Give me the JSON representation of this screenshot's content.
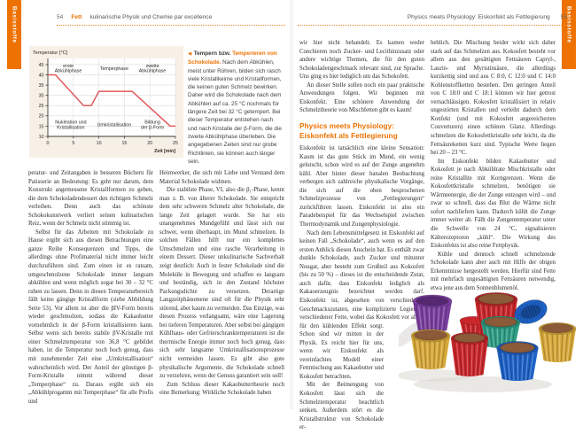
{
  "accent_color": "#ee7203",
  "tabs": {
    "left": "Basisstoffe",
    "right": "Basisstoffe"
  },
  "header_left": {
    "page_number": "54",
    "chapter": "Fett",
    "title": "kulinarische Physik und Chemie par excellence"
  },
  "header_right": {
    "section": "Physics meets Physiology:  Eiskonfekt als Fettlegierung",
    "page_number": "55"
  },
  "chart_data": {
    "type": "line",
    "title": "Temperatur [°C]",
    "xlabel": "Zeit [min]",
    "ylabel": "Temperatur [°C]",
    "xlim": [
      0,
      25
    ],
    "ylim": [
      10,
      48
    ],
    "xticks": [
      0,
      5,
      10,
      15,
      20,
      25
    ],
    "yticks": [
      10,
      15,
      20,
      25,
      30,
      35,
      40,
      45
    ],
    "grid": true,
    "background": "#f7f0e7",
    "line_color": "#e2595b",
    "series": [
      {
        "points": [
          [
            0,
            40
          ],
          [
            1.5,
            40
          ],
          [
            7,
            25
          ],
          [
            8.5,
            25
          ],
          [
            10,
            32
          ],
          [
            16.5,
            32
          ],
          [
            24,
            15
          ],
          [
            25,
            15
          ]
        ]
      }
    ],
    "annotations": [
      {
        "text": "erste\nAbkühlphase",
        "x": 4,
        "y": 43.3
      },
      {
        "text": "Temperphase",
        "x": 13,
        "y": 43.3
      },
      {
        "text": "zweite\nAbkühlphase",
        "x": 20.5,
        "y": 43.3
      },
      {
        "text": "Nukleation und\nKristallisation",
        "x": 4.5,
        "y": 15.8
      },
      {
        "text": "Umkristallisation",
        "x": 13,
        "y": 15.8
      },
      {
        "text": "Bildung\nder β-Form",
        "x": 20.5,
        "y": 15.8
      }
    ]
  },
  "figure_caption": {
    "marker": "◀",
    "lead": "Tempern bzw.",
    "lead_highlight": "Temperieren von Schokolade.",
    "body": "Nach dem Abkühlen, meist unter Rühren, bilden sich rasch viele Kristallkeime und Kristallformen, die keinen guten Schmelz bewirken. Daher wird die Schokolade nach dem Abkühlen auf ca. 25 °C nochmals für längere Zeit bei 32 °C getempert. Bei dieser Temperatur entstehen nach und nach Kristalle der β-Form, die die zweite Abkühlphase überleben. Die angegebenen Zeiten sind nur grobe Richtlinien, sie können auch länger sein."
  },
  "page_left": {
    "col1": {
      "p1": "peratur- und Zeitangaben in besseren Büchern für Patisserie an Bedeutung: Es geht nur darum, dem Konstrukt angemessene Kristallformen zu geben, die dem Schokoladendessert den richtigen Schmelz verleihen. Denn auch das schönste Schokokunstwerk verliert seinen kulinarischen Reiz, wenn der Schmelz nicht stimmig ist.",
      "p2": "Selbst für das Arbeiten mit Schokolade zu Hause ergibt sich aus diesen Betrachtungen eine ganze Reihe Konsequenzen und Tipps, die allerdings ohne Profimaterial nicht immer leicht durchzuführen sind. Zum einen ist es ratsam, umgeschmolzene Schokolade immer langsam abkühlen und wenn möglich sogar bei 30 – 32 °C ruhen zu lassen. Denn in diesen Temperaturbereich fällt keine gängige Kristallform (siehe Abbildung Seite 53). Vor allem ist aber die βIV-Form bereits wieder geschmolzen, sodass die Kakaobutter vornehmlich in der β-Form kristallisieren kann. Selbst wenn sich bereits stabile βV-Kristalle mit einer Schmelztemperatur von 36,8 °C gebildet haben, ist die Temperatur noch hoch genug, dass mit zunehmender Zeit eine „Umkristallisation“ wahrscheinlich wird. Der Anteil der günstigen β-Form-Kristalle nimmt während dieser „Temperphase“ zu. Daraus ergibt sich ein „Abkühlprogamm mit Temperphase“ für alle Profis und"
    },
    "col2": {
      "p1": "Heimwerker, die sich mit Liebe und Verstand dem Material Schokolade widmen.",
      "p2": "Die stabilste Phase, VI, also die β₁-Phase, kennt man z. B. von älterer Schokolade. Sie entspricht dem sehr schweren Schmelz alter Schokolade, die lange Zeit gelagert wurde. Sie hat ein unangenehmes Mundgefühl und lässt sich nur schwer, wenn überhaupt, im Mund schmelzen. In solchen Fällen hilft nur ein komplettes Umschmelzen und eine rasche Verarbeitung in einem Dessert. Dieser unkulinarische Sachverhalt zeigt deutlich: Auch in fester Schokolade sind die Moleküle in Bewegung und schaffen es langsam und beständig, sich in den Zustand höchster Packungsdichte zu versetzen. Derartige Langzeitphänomene sind oft für die Physik sehr störend, aber kaum zu vermeiden. Das Einzige, was diesen Prozess verlangsamt, wäre eine Lagerung bei tieferen Temperaturen. Aber selbst bei gängigen Kühlhaus- oder Gefrierschranktemperaturen ist die thermische Energie immer noch hoch genug, dass sich sehr langsame Umkristallisationsprozesse nicht vermeiden lassen. Es gibt also gute physikalische Argumente, die Schokolade schnell zu verzehren, wenn der Genuss garantiert sein soll!",
      "p3": "Zum Schluss dieser Kakaobuttertheorie noch eine Bemerkung: Wirkliche Schokolade haben"
    }
  },
  "page_right": {
    "col1": {
      "p1": "wir hier nicht behandelt. Es kamen weder Conchieren noch Zucker- und Lecithinzusatz oder andere wichtige Themen, die für den guten Schokoladengeschmack relevant sind, zur Sprache. Uns ging es hier lediglich um das Schokofett.",
      "p2": "An dieser Stelle sollen noch ein paar praktische Anwendungen folgen. Wir beginnen mit Eiskonfekt. Eine schönere Anwendung der Schmelztheorie von Mischfetten gibt es kaum!",
      "heading": "Physics meets Physiology: Eiskonfekt als Fettlegierung",
      "p3": "Eiskonfekt ist tatsächlich eine kleine Sensation: Kaum ist das gute Stück im Mund, ein wenig gelutscht, schon wird es auf der Zunge angenehm kühl. Aber hinter dieser banalen Beobachtung verbergen sich zahlreiche physikalische Vorgänge, die sich auf die oben besprochenen Schmelzprozesse von „Fettlegierungen“ zurückführen lassen. Eiskonfekt ist also ein Paradebeispiel für das Wechselspiel zwischen Thermodynamik und Zungenphysiologie.",
      "p4a": "Nach dem Lebensmittelgesetz ist Eiskonfekt auf keinen Fall „Schokolade“, auch wenn es auf den ersten Anblick diesen Anschein hat. Es enthält zwar dunkle Schokolade, auch Zucker und mitunter Nougat, aber besteht zum Großteil aus Kokosfett (bis zu 50 %) – dieses ist die entscheidende Zutat, auch dafür, dass Eiskonfekt lediglich als Kakaoerzeugnis bezeichnet werden darf. Eiskonfekt ist, abgesehen von verschiedenen Geschmackszutaten, eine komplizierte Legierung verschiedener Fette, wobei das Kokosfett vor allem für den kühlenden Effekt sorgt.",
      "p4b": "Schon sind wir mitten in der Physik. Es reicht hier für uns, wenn wir Eiskonfekt als vereinfachtes Modell einer Fettmischung aus Kakaobutter und Kokosfett betrachten.",
      "p5": "Mit der Beimengung von Kokosfett lässt sich die Schmelztemperatur beachtlich senken. Außerdem stört es die Kristallstruktur von Schokolade er-"
    },
    "col2": {
      "p1": "heblich. Die Mischung beider wirkt sich daher stark auf das Schmelzen aus. Kokosfett besteht vor allem aus den gesättigten Fettsäuren Capryl-, Laurin- und Myristinsäure, die allerdings kurzkettig sind und aus C 8:0, C 12:0 und C 14:0 Kohlenstoffketten bestehen. Den geringen Anteil von C 18:0 und C 18:1 können wir hier getrost vernachlässigen. Kokosfett kristallisiert in relativ ungestörten Kristallen und verleiht dadurch dem Konfekt (und mit Kokosfett angereicherten Couverturen) einen schönen Glanz. Allerdings schmelzen die Kokosfettkristalle sehr leicht, da die Fettsäureketten kurz sind. Typische Werte liegen bei 20 – 23 °C.",
      "p2": "Im Eiskonfekt bilden Kakaobutter und Kokosfett je nach Abkühlrate Mischkristalle oder reine Kristallite mit Korngrenzen. Wenn die Kokosfettkristalle schmelzen, benötigen sie Wärmeenergie, die der Zunge entzogen wird – und zwar so schnell, dass das Blut die Wärme nicht sofort nachliefern kann. Dadurch kühlt die Zunge immer weiter ab. Fällt die Zungentemperatur unter die Schwelle von 24 °C, signalisieren Kälterezeptoren „kühl“. Die Wirkung des Eiskonfekts ist also reine Fettphysik.",
      "p3": "Kühle und dennoch schnell schmelzende Schokolade kann aber auch mit Hilfe der obigen Erkenntnisse hergestellt werden. Hierfür sind Fette mit mehrfach ungesättigten Fettsäuren notwendig, etwa jene aus dem Sonnenblumenöl."
    }
  },
  "photo": {
    "description": "Eiskonfekt – Schokoladenkonfekt in bunten geriffelten Folienförmchen",
    "foil_colors": {
      "purple": "#7a3f9f",
      "gold": "#d8a93a",
      "red": "#c9272b",
      "teal": "#2f9e85",
      "blue": "#1e62c8"
    },
    "chocolate_color": "#8a5a39"
  }
}
